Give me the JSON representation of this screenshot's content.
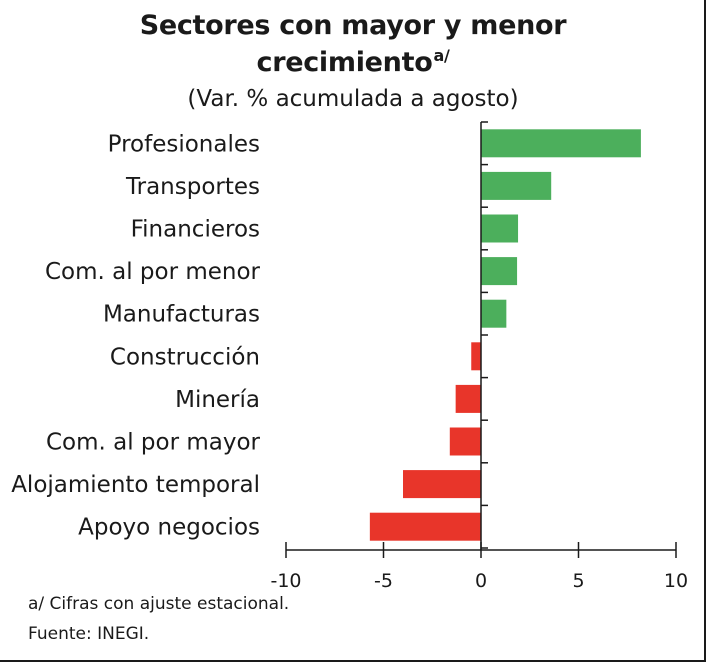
{
  "title_line1": "Sectores con mayor y menor",
  "title_line2": "crecimiento",
  "title_superscript": "a/",
  "subtitle": "(Var. % acumulada a agosto)",
  "footnote": "a/ Cifras con ajuste estacional.",
  "source": "Fuente: INEGI.",
  "chart_data": {
    "type": "bar",
    "orientation": "horizontal",
    "categories": [
      "Profesionales",
      "Transportes",
      "Financieros",
      "Com. al por menor",
      "Manufacturas",
      "Construcción",
      "Minería",
      "Com. al por mayor",
      "Alojamiento temporal",
      "Apoyo negocios"
    ],
    "values": [
      8.2,
      3.6,
      1.9,
      1.85,
      1.3,
      -0.5,
      -1.3,
      -1.6,
      -4.0,
      -5.7
    ],
    "xlim": [
      -10,
      10
    ],
    "xticks": [
      -10,
      -5,
      0,
      5,
      10
    ],
    "grid": false,
    "legend": "none",
    "colors": {
      "positive": "#4caf5c",
      "negative": "#e8352a",
      "axis": "#1a1a1a"
    }
  }
}
